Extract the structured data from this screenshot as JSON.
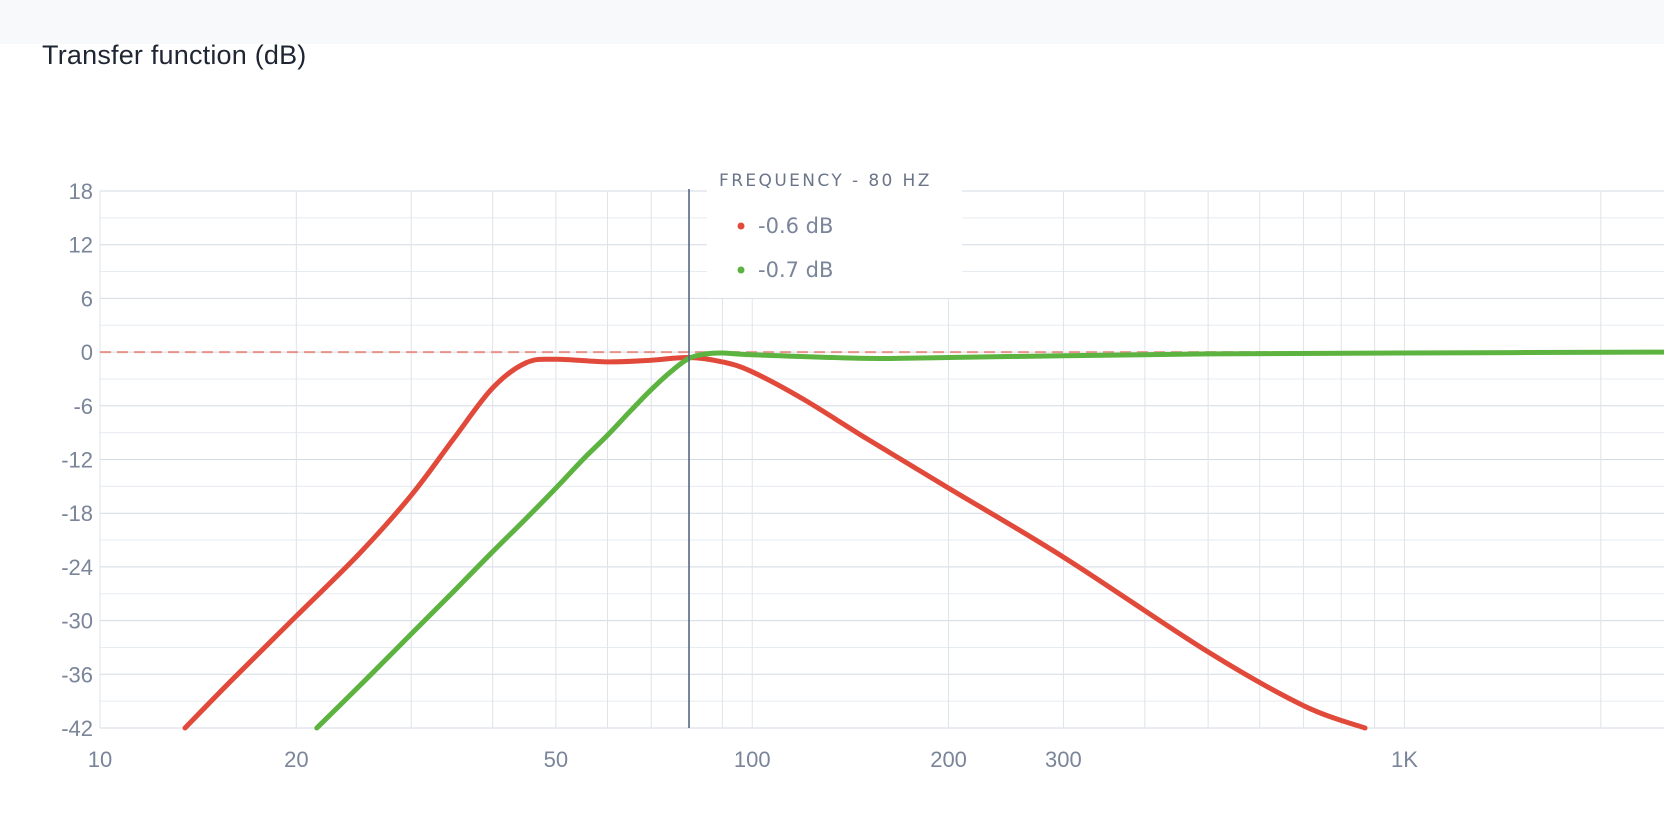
{
  "card": {
    "title": "Transfer function (dB)"
  },
  "tooltip": {
    "title": "FREQUENCY - 80 HZ",
    "items": [
      {
        "label": "-0.6 dB",
        "color": "#e14a3b"
      },
      {
        "label": "-0.7 dB",
        "color": "#5cb33f"
      }
    ]
  },
  "chart_data": {
    "type": "line",
    "xscale": "log",
    "xlim": [
      10,
      2500
    ],
    "ylim": [
      -42,
      18
    ],
    "x_ticks": [
      {
        "value": 10,
        "label": "10"
      },
      {
        "value": 20,
        "label": "20"
      },
      {
        "value": 50,
        "label": "50"
      },
      {
        "value": 100,
        "label": "100"
      },
      {
        "value": 200,
        "label": "200"
      },
      {
        "value": 300,
        "label": "300"
      },
      {
        "value": 1000,
        "label": "1K"
      }
    ],
    "y_ticks": [
      18,
      12,
      6,
      0,
      -6,
      -12,
      -18,
      -24,
      -30,
      -36,
      -42
    ],
    "grid": true,
    "reference_line": {
      "y": 0,
      "style": "dashed",
      "color": "#e8938a"
    },
    "cursor": {
      "x": 80
    },
    "series": [
      {
        "color": "#e14a3b",
        "x": [
          13.5,
          16,
          20,
          25,
          30,
          35,
          40,
          45,
          50,
          60,
          70,
          80,
          90,
          100,
          120,
          150,
          200,
          300,
          500,
          700,
          870
        ],
        "y": [
          -42,
          -36.5,
          -29.5,
          -22.5,
          -16,
          -9.5,
          -4,
          -1.2,
          -0.8,
          -1.1,
          -0.9,
          -0.6,
          -1.1,
          -2.2,
          -5.3,
          -9.7,
          -15.2,
          -22.9,
          -33.5,
          -39.5,
          -42
        ]
      },
      {
        "color": "#5cb33f",
        "x": [
          21.5,
          25,
          30,
          35,
          40,
          45,
          50,
          55,
          60,
          65,
          70,
          75,
          80,
          85,
          90,
          100,
          150,
          200,
          300,
          500,
          1000,
          2500
        ],
        "y": [
          -42,
          -37.3,
          -31.5,
          -26.6,
          -22.3,
          -18.6,
          -15.2,
          -12,
          -9.3,
          -6.6,
          -4.2,
          -2.2,
          -0.7,
          -0.2,
          -0.1,
          -0.3,
          -0.7,
          -0.6,
          -0.4,
          -0.2,
          -0.1,
          0
        ]
      }
    ]
  }
}
